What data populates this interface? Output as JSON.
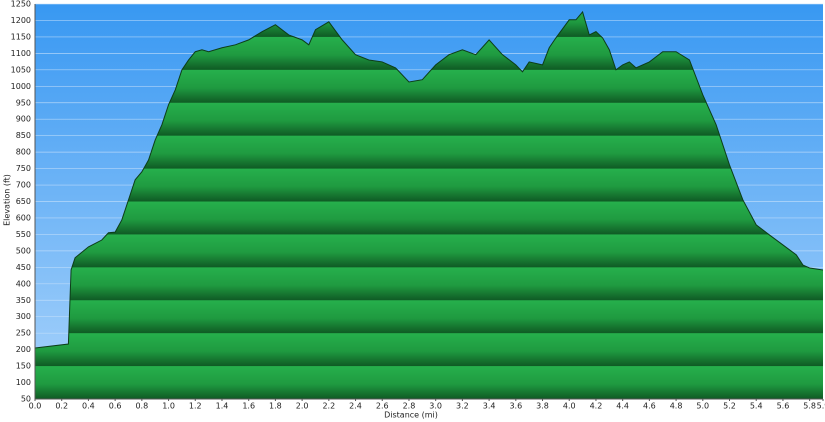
{
  "chart_data": {
    "type": "area",
    "xlabel": "Distance   (mi)",
    "ylabel": "Elevation (ft)",
    "x": [
      0,
      0.25,
      0.27,
      0.3,
      0.4,
      0.5,
      0.55,
      0.6,
      0.65,
      0.7,
      0.75,
      0.8,
      0.85,
      0.9,
      0.95,
      1.0,
      1.05,
      1.1,
      1.15,
      1.2,
      1.25,
      1.3,
      1.4,
      1.5,
      1.6,
      1.7,
      1.8,
      1.9,
      2.0,
      2.05,
      2.1,
      2.2,
      2.3,
      2.4,
      2.5,
      2.6,
      2.7,
      2.8,
      2.9,
      3.0,
      3.1,
      3.2,
      3.3,
      3.4,
      3.5,
      3.6,
      3.65,
      3.7,
      3.8,
      3.85,
      3.9,
      4.0,
      4.05,
      4.1,
      4.15,
      4.2,
      4.25,
      4.3,
      4.35,
      4.4,
      4.45,
      4.5,
      4.6,
      4.7,
      4.8,
      4.9,
      5.0,
      5.1,
      5.2,
      5.3,
      5.4,
      5.5,
      5.6,
      5.7,
      5.75,
      5.8,
      5.9
    ],
    "values": [
      205,
      217,
      442,
      479,
      512,
      533,
      555,
      557,
      594,
      655,
      716,
      740,
      776,
      837,
      883,
      944,
      989,
      1050,
      1080,
      1105,
      1111,
      1105,
      1117,
      1126,
      1141,
      1166,
      1187,
      1156,
      1141,
      1126,
      1172,
      1196,
      1141,
      1096,
      1080,
      1074,
      1056,
      1013,
      1020,
      1065,
      1096,
      1111,
      1096,
      1141,
      1096,
      1065,
      1044,
      1074,
      1065,
      1117,
      1147,
      1202,
      1202,
      1226,
      1156,
      1166,
      1147,
      1111,
      1050,
      1065,
      1074,
      1056,
      1074,
      1105,
      1105,
      1080,
      974,
      883,
      761,
      655,
      579,
      548,
      518,
      488,
      457,
      448,
      442
    ],
    "color": "#23a847",
    "xlim": [
      0,
      5.9
    ],
    "ylim": [
      50,
      1250
    ],
    "xticks": [
      {
        "value": 0,
        "label": "0.0"
      },
      0.2,
      0.4,
      0.6,
      0.8,
      {
        "value": 1,
        "label": "1.0"
      },
      1.2,
      1.4,
      1.6,
      1.8,
      {
        "value": 2,
        "label": "2.0"
      },
      2.2,
      2.4,
      2.6,
      2.8,
      {
        "value": 3,
        "label": "3.0"
      },
      3.2,
      3.4,
      3.6,
      3.8,
      {
        "value": 4,
        "label": "4.0"
      },
      4.2,
      4.4,
      4.6,
      4.8,
      {
        "value": 5,
        "label": "5.0"
      },
      5.2,
      5.4,
      5.6,
      5.8,
      5.9
    ],
    "yticks": [
      50,
      100,
      150,
      200,
      250,
      300,
      350,
      400,
      450,
      500,
      550,
      600,
      650,
      700,
      750,
      800,
      850,
      900,
      950,
      1000,
      1050,
      1100,
      1150,
      1200,
      1250
    ],
    "grid": true
  }
}
